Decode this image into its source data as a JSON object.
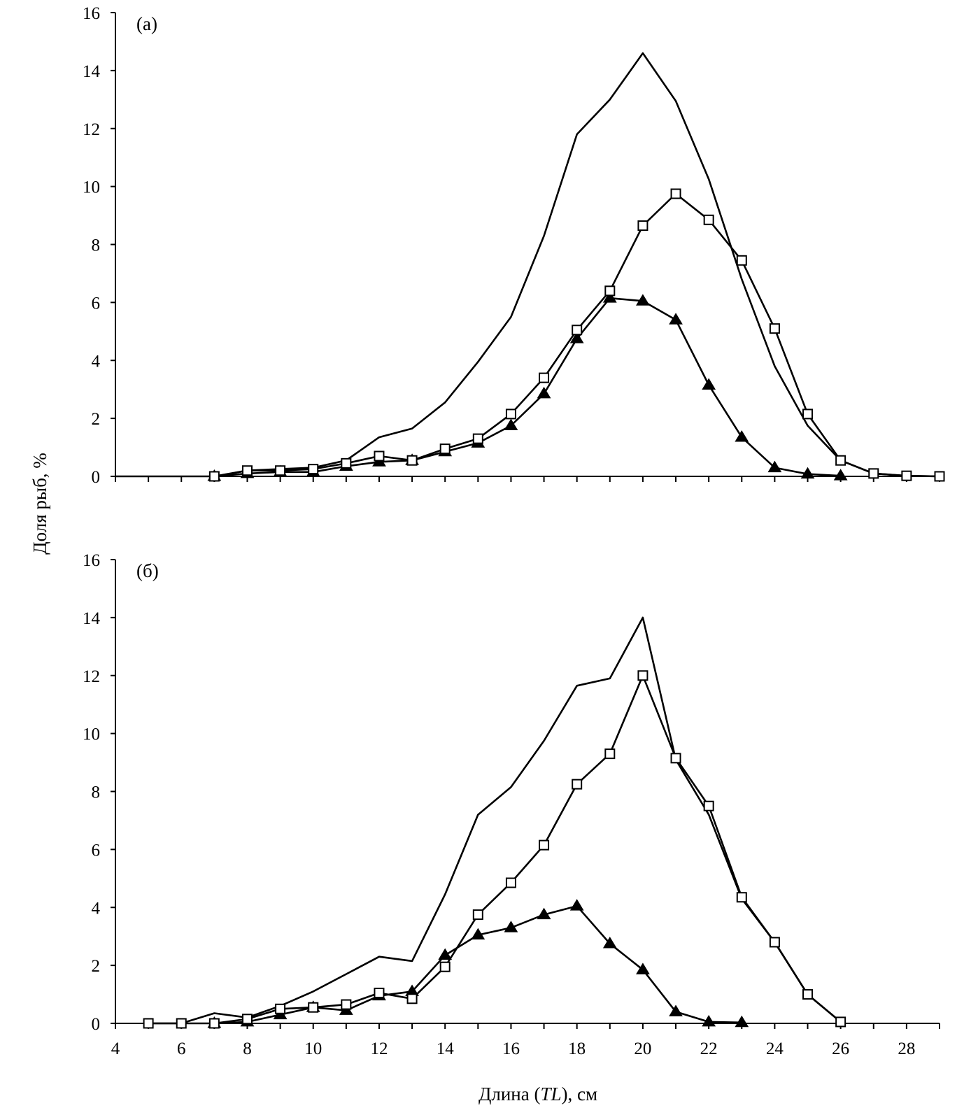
{
  "chart_data": [
    {
      "type": "line",
      "panel_label": "(а)",
      "ylim": [
        0,
        16
      ],
      "yticks": [
        0,
        2,
        4,
        6,
        8,
        10,
        12,
        14,
        16
      ],
      "xlim": [
        4,
        29
      ],
      "series": [
        {
          "name": "total",
          "marker": "none",
          "points": [
            [
              4,
              0
            ],
            [
              5,
              0
            ],
            [
              6,
              0
            ],
            [
              7,
              0
            ],
            [
              8,
              0.2
            ],
            [
              9,
              0.25
            ],
            [
              10,
              0.3
            ],
            [
              11,
              0.55
            ],
            [
              12,
              1.35
            ],
            [
              13,
              1.65
            ],
            [
              14,
              2.55
            ],
            [
              15,
              3.95
            ],
            [
              16,
              5.5
            ],
            [
              17,
              8.3
            ],
            [
              18,
              11.8
            ],
            [
              19,
              13.0
            ],
            [
              20,
              14.6
            ],
            [
              21,
              12.95
            ],
            [
              22,
              10.25
            ],
            [
              23,
              6.8
            ],
            [
              24,
              3.8
            ],
            [
              25,
              1.75
            ],
            [
              26,
              0.55
            ],
            [
              27,
              0.1
            ],
            [
              28,
              0.02
            ],
            [
              29,
              0
            ]
          ]
        },
        {
          "name": "open-square",
          "marker": "square",
          "points": [
            [
              7,
              0
            ],
            [
              8,
              0.2
            ],
            [
              9,
              0.2
            ],
            [
              10,
              0.25
            ],
            [
              11,
              0.45
            ],
            [
              12,
              0.7
            ],
            [
              13,
              0.55
            ],
            [
              14,
              0.95
            ],
            [
              15,
              1.3
            ],
            [
              16,
              2.15
            ],
            [
              17,
              3.4
            ],
            [
              18,
              5.05
            ],
            [
              19,
              6.4
            ],
            [
              20,
              8.65
            ],
            [
              21,
              9.75
            ],
            [
              22,
              8.85
            ],
            [
              23,
              7.45
            ],
            [
              24,
              5.1
            ],
            [
              25,
              2.15
            ],
            [
              26,
              0.55
            ],
            [
              27,
              0.1
            ],
            [
              28,
              0.02
            ],
            [
              29,
              0
            ]
          ]
        },
        {
          "name": "filled-triangle",
          "marker": "triangle",
          "points": [
            [
              7,
              0
            ],
            [
              8,
              0.1
            ],
            [
              9,
              0.15
            ],
            [
              10,
              0.15
            ],
            [
              11,
              0.35
            ],
            [
              12,
              0.5
            ],
            [
              13,
              0.55
            ],
            [
              14,
              0.85
            ],
            [
              15,
              1.15
            ],
            [
              16,
              1.75
            ],
            [
              17,
              2.85
            ],
            [
              18,
              4.75
            ],
            [
              19,
              6.15
            ],
            [
              20,
              6.05
            ],
            [
              21,
              5.4
            ],
            [
              22,
              3.15
            ],
            [
              23,
              1.35
            ],
            [
              24,
              0.3
            ],
            [
              25,
              0.08
            ],
            [
              26,
              0.02
            ]
          ]
        }
      ]
    },
    {
      "type": "line",
      "panel_label": "(б)",
      "ylim": [
        0,
        16
      ],
      "yticks": [
        0,
        2,
        4,
        6,
        8,
        10,
        12,
        14,
        16
      ],
      "xlim": [
        4,
        29
      ],
      "xticks": [
        4,
        6,
        8,
        10,
        12,
        14,
        16,
        18,
        20,
        22,
        24,
        26,
        28
      ],
      "series": [
        {
          "name": "total",
          "marker": "none",
          "points": [
            [
              5,
              0
            ],
            [
              6,
              0
            ],
            [
              7,
              0.35
            ],
            [
              8,
              0.2
            ],
            [
              9,
              0.6
            ],
            [
              10,
              1.1
            ],
            [
              11,
              1.7
            ],
            [
              12,
              2.3
            ],
            [
              13,
              2.15
            ],
            [
              14,
              4.45
            ],
            [
              15,
              7.2
            ],
            [
              16,
              8.15
            ],
            [
              17,
              9.75
            ],
            [
              18,
              11.65
            ],
            [
              19,
              11.9
            ],
            [
              20,
              14.0
            ],
            [
              21,
              9.1
            ],
            [
              22,
              7.2
            ],
            [
              23,
              4.3
            ],
            [
              24,
              2.8
            ],
            [
              25,
              1.0
            ],
            [
              26,
              0.05
            ]
          ]
        },
        {
          "name": "open-square",
          "marker": "square",
          "points": [
            [
              5,
              0
            ],
            [
              6,
              0
            ],
            [
              7,
              0
            ],
            [
              8,
              0.15
            ],
            [
              9,
              0.5
            ],
            [
              10,
              0.55
            ],
            [
              11,
              0.65
            ],
            [
              12,
              1.05
            ],
            [
              13,
              0.85
            ],
            [
              14,
              1.95
            ],
            [
              15,
              3.75
            ],
            [
              16,
              4.85
            ],
            [
              17,
              6.15
            ],
            [
              18,
              8.25
            ],
            [
              19,
              9.3
            ],
            [
              20,
              12.0
            ],
            [
              21,
              9.15
            ],
            [
              22,
              7.5
            ],
            [
              23,
              4.35
            ],
            [
              24,
              2.8
            ],
            [
              25,
              1.0
            ],
            [
              26,
              0.05
            ]
          ]
        },
        {
          "name": "filled-triangle",
          "marker": "triangle",
          "points": [
            [
              7,
              0
            ],
            [
              8,
              0.05
            ],
            [
              9,
              0.3
            ],
            [
              10,
              0.55
            ],
            [
              11,
              0.45
            ],
            [
              12,
              0.95
            ],
            [
              13,
              1.1
            ],
            [
              14,
              2.35
            ],
            [
              15,
              3.05
            ],
            [
              16,
              3.3
            ],
            [
              17,
              3.75
            ],
            [
              18,
              4.05
            ],
            [
              19,
              2.75
            ],
            [
              20,
              1.85
            ],
            [
              21,
              0.4
            ],
            [
              22,
              0.05
            ],
            [
              23,
              0.03
            ]
          ]
        }
      ]
    }
  ],
  "ylabel": "Доля рыб, %",
  "xlabel_prefix": "Длина (",
  "xlabel_italic": "TL",
  "xlabel_suffix": "), см"
}
